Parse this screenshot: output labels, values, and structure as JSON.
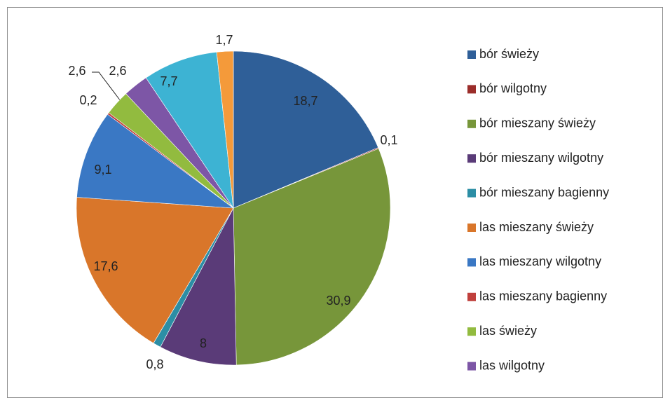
{
  "chart_data": {
    "type": "pie",
    "categories": [
      "bór świeży",
      "bór wilgotny",
      "bór mieszany świeży",
      "bór mieszany wilgotny",
      "bór mieszany bagienny",
      "las mieszany świeży",
      "las mieszany wilgotny",
      "las mieszany bagienny",
      "las świeży",
      "las wilgotny",
      null,
      null
    ],
    "values": [
      18.7,
      0.1,
      30.9,
      8,
      0.8,
      17.6,
      9.1,
      0.2,
      2.6,
      2.6,
      7.7,
      1.7
    ],
    "value_labels": [
      "18,7",
      "0,1",
      "30,9",
      "8",
      "0,8",
      "17,6",
      "9,1",
      "0,2",
      "2,6",
      "2,6",
      "7,7",
      "1,7"
    ],
    "colors": [
      "#2f5f98",
      "#9b2d2a",
      "#77963a",
      "#5a3b78",
      "#2c8ea5",
      "#d9762a",
      "#3a78c4",
      "#c0403c",
      "#92bb3f",
      "#7d56a6",
      "#3db3d3",
      "#f49a3a"
    ],
    "legend": "right"
  }
}
